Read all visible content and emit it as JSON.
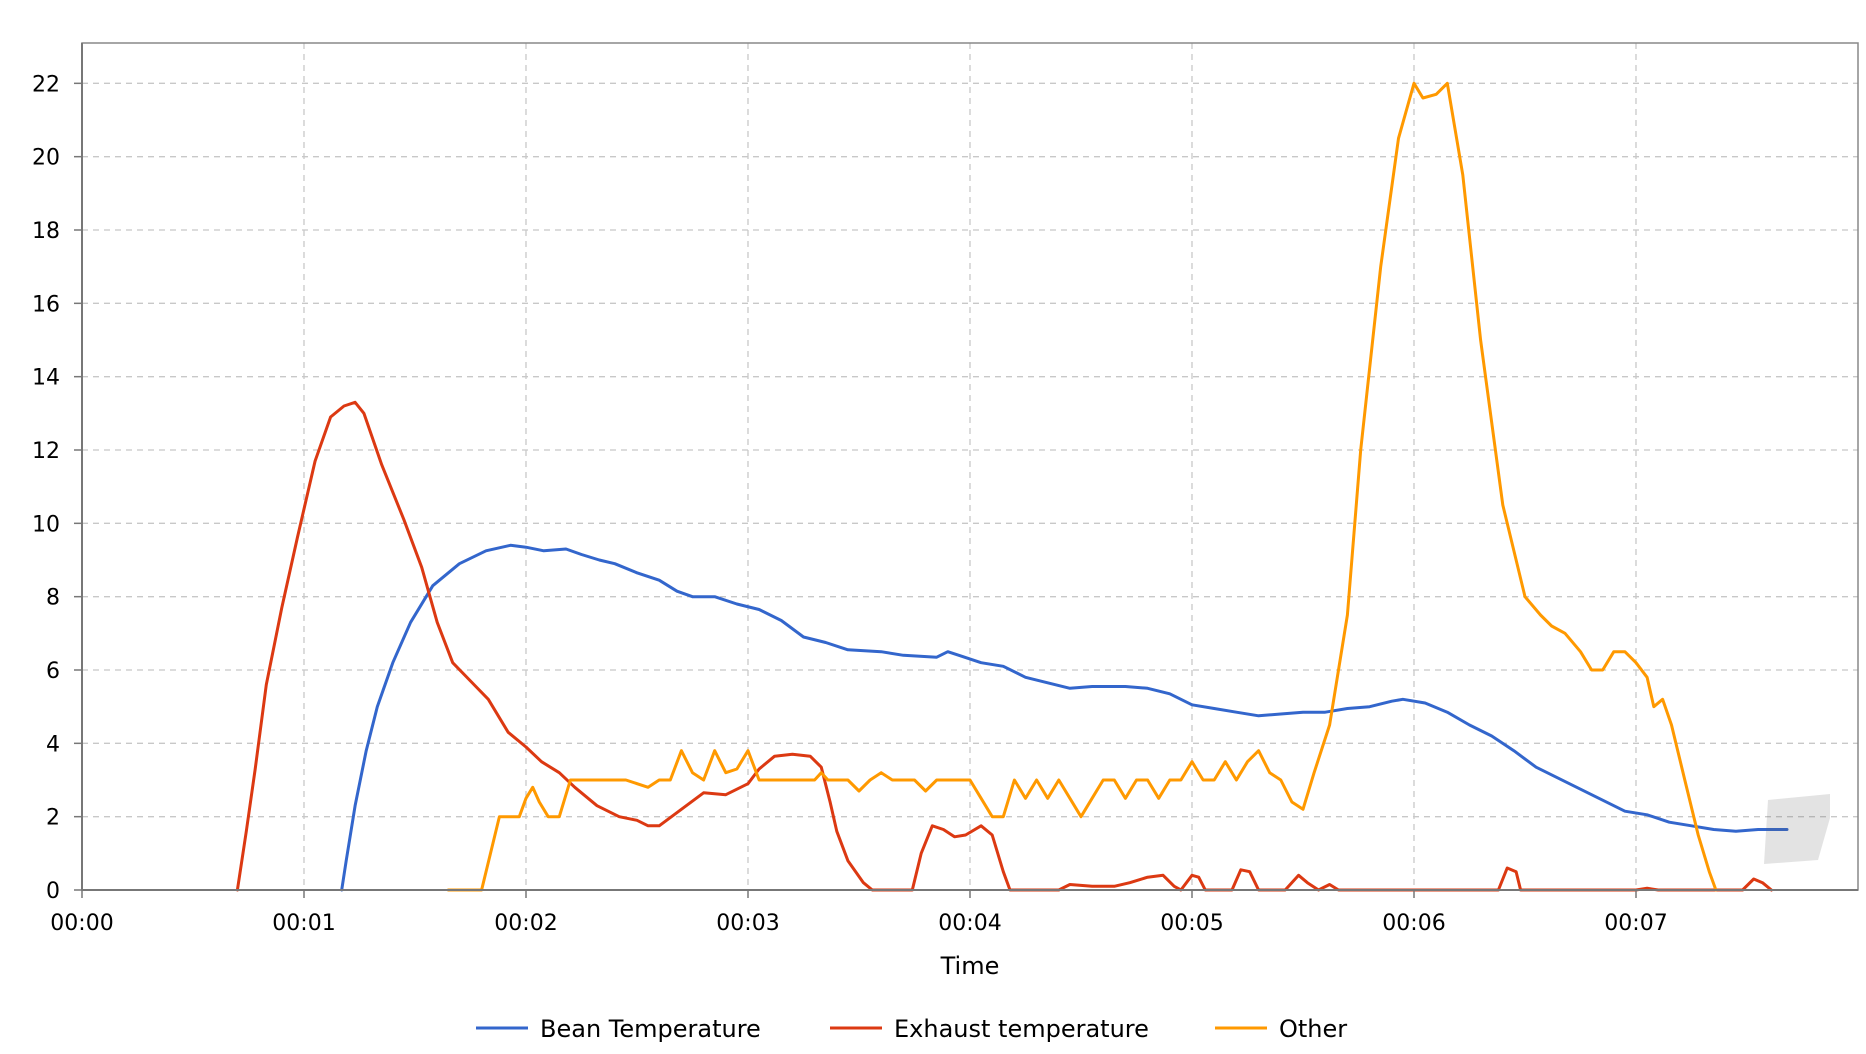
{
  "chart_data": {
    "type": "line",
    "title": "",
    "xlabel": "Time",
    "ylabel": "",
    "xlim": [
      0,
      8.0
    ],
    "ylim": [
      0,
      23.1
    ],
    "grid": true,
    "legend_position": "bottom-center",
    "x_ticks": [
      {
        "value": 0,
        "label": "00:00"
      },
      {
        "value": 1,
        "label": "00:01"
      },
      {
        "value": 2,
        "label": "00:02"
      },
      {
        "value": 3,
        "label": "00:03"
      },
      {
        "value": 4,
        "label": "00:04"
      },
      {
        "value": 5,
        "label": "00:05"
      },
      {
        "value": 6,
        "label": "00:06"
      },
      {
        "value": 7,
        "label": "00:07"
      }
    ],
    "y_ticks": [
      {
        "value": 0,
        "label": "0"
      },
      {
        "value": 2,
        "label": "2"
      },
      {
        "value": 4,
        "label": "4"
      },
      {
        "value": 6,
        "label": "6"
      },
      {
        "value": 8,
        "label": "8"
      },
      {
        "value": 10,
        "label": "10"
      },
      {
        "value": 12,
        "label": "12"
      },
      {
        "value": 14,
        "label": "14"
      },
      {
        "value": 16,
        "label": "16"
      },
      {
        "value": 18,
        "label": "18"
      },
      {
        "value": 20,
        "label": "20"
      },
      {
        "value": 22,
        "label": "22"
      }
    ],
    "series": [
      {
        "name": "Bean Temperature",
        "color": "#3366cc",
        "points": [
          [
            1.17,
            0
          ],
          [
            1.19,
            0.8
          ],
          [
            1.23,
            2.3
          ],
          [
            1.28,
            3.8
          ],
          [
            1.33,
            5.0
          ],
          [
            1.4,
            6.2
          ],
          [
            1.48,
            7.3
          ],
          [
            1.58,
            8.3
          ],
          [
            1.7,
            8.9
          ],
          [
            1.82,
            9.25
          ],
          [
            1.93,
            9.4
          ],
          [
            2.0,
            9.35
          ],
          [
            2.08,
            9.25
          ],
          [
            2.18,
            9.3
          ],
          [
            2.25,
            9.15
          ],
          [
            2.33,
            9.0
          ],
          [
            2.4,
            8.9
          ],
          [
            2.5,
            8.65
          ],
          [
            2.6,
            8.45
          ],
          [
            2.68,
            8.15
          ],
          [
            2.75,
            8.0
          ],
          [
            2.85,
            8.0
          ],
          [
            2.95,
            7.8
          ],
          [
            3.05,
            7.65
          ],
          [
            3.15,
            7.35
          ],
          [
            3.25,
            6.9
          ],
          [
            3.35,
            6.75
          ],
          [
            3.45,
            6.55
          ],
          [
            3.6,
            6.5
          ],
          [
            3.7,
            6.4
          ],
          [
            3.85,
            6.35
          ],
          [
            3.9,
            6.5
          ],
          [
            3.95,
            6.4
          ],
          [
            4.05,
            6.2
          ],
          [
            4.15,
            6.1
          ],
          [
            4.25,
            5.8
          ],
          [
            4.35,
            5.65
          ],
          [
            4.45,
            5.5
          ],
          [
            4.55,
            5.55
          ],
          [
            4.7,
            5.55
          ],
          [
            4.8,
            5.5
          ],
          [
            4.9,
            5.35
          ],
          [
            5.0,
            5.05
          ],
          [
            5.1,
            4.95
          ],
          [
            5.2,
            4.85
          ],
          [
            5.3,
            4.75
          ],
          [
            5.4,
            4.8
          ],
          [
            5.5,
            4.85
          ],
          [
            5.6,
            4.85
          ],
          [
            5.7,
            4.95
          ],
          [
            5.8,
            5.0
          ],
          [
            5.9,
            5.15
          ],
          [
            5.95,
            5.2
          ],
          [
            6.05,
            5.1
          ],
          [
            6.15,
            4.85
          ],
          [
            6.25,
            4.5
          ],
          [
            6.35,
            4.2
          ],
          [
            6.45,
            3.8
          ],
          [
            6.55,
            3.35
          ],
          [
            6.65,
            3.05
          ],
          [
            6.75,
            2.75
          ],
          [
            6.85,
            2.45
          ],
          [
            6.95,
            2.15
          ],
          [
            7.05,
            2.05
          ],
          [
            7.15,
            1.85
          ],
          [
            7.25,
            1.75
          ],
          [
            7.35,
            1.65
          ],
          [
            7.45,
            1.6
          ],
          [
            7.55,
            1.65
          ],
          [
            7.63,
            1.65
          ],
          [
            7.68,
            1.65
          ]
        ]
      },
      {
        "name": "Exhaust temperature",
        "color": "#dc3912",
        "points": [
          [
            0.7,
            0
          ],
          [
            0.74,
            1.6
          ],
          [
            0.78,
            3.3
          ],
          [
            0.83,
            5.6
          ],
          [
            0.9,
            7.7
          ],
          [
            0.97,
            9.6
          ],
          [
            1.05,
            11.7
          ],
          [
            1.12,
            12.9
          ],
          [
            1.18,
            13.2
          ],
          [
            1.23,
            13.3
          ],
          [
            1.27,
            13.0
          ],
          [
            1.35,
            11.6
          ],
          [
            1.45,
            10.1
          ],
          [
            1.53,
            8.8
          ],
          [
            1.6,
            7.3
          ],
          [
            1.67,
            6.2
          ],
          [
            1.75,
            5.7
          ],
          [
            1.83,
            5.2
          ],
          [
            1.92,
            4.3
          ],
          [
            2.0,
            3.9
          ],
          [
            2.07,
            3.5
          ],
          [
            2.15,
            3.2
          ],
          [
            2.22,
            2.8
          ],
          [
            2.32,
            2.3
          ],
          [
            2.42,
            2.0
          ],
          [
            2.5,
            1.9
          ],
          [
            2.55,
            1.75
          ],
          [
            2.6,
            1.75
          ],
          [
            2.7,
            2.2
          ],
          [
            2.8,
            2.65
          ],
          [
            2.9,
            2.6
          ],
          [
            3.0,
            2.9
          ],
          [
            3.05,
            3.3
          ],
          [
            3.12,
            3.65
          ],
          [
            3.2,
            3.7
          ],
          [
            3.28,
            3.65
          ],
          [
            3.33,
            3.35
          ],
          [
            3.37,
            2.4
          ],
          [
            3.4,
            1.6
          ],
          [
            3.45,
            0.8
          ],
          [
            3.52,
            0.2
          ],
          [
            3.56,
            0
          ],
          [
            3.74,
            0
          ],
          [
            3.78,
            1.0
          ],
          [
            3.83,
            1.75
          ],
          [
            3.88,
            1.65
          ],
          [
            3.93,
            1.45
          ],
          [
            3.98,
            1.5
          ],
          [
            4.05,
            1.75
          ],
          [
            4.1,
            1.5
          ],
          [
            4.15,
            0.5
          ],
          [
            4.18,
            0
          ],
          [
            4.4,
            0
          ],
          [
            4.45,
            0.15
          ],
          [
            4.55,
            0.1
          ],
          [
            4.65,
            0.1
          ],
          [
            4.72,
            0.2
          ],
          [
            4.8,
            0.35
          ],
          [
            4.87,
            0.4
          ],
          [
            4.92,
            0.1
          ],
          [
            4.95,
            0
          ],
          [
            5.0,
            0.4
          ],
          [
            5.03,
            0.35
          ],
          [
            5.06,
            0
          ],
          [
            5.18,
            0
          ],
          [
            5.22,
            0.55
          ],
          [
            5.26,
            0.5
          ],
          [
            5.3,
            0
          ],
          [
            5.42,
            0
          ],
          [
            5.48,
            0.4
          ],
          [
            5.52,
            0.2
          ],
          [
            5.57,
            0
          ],
          [
            5.62,
            0.15
          ],
          [
            5.66,
            0
          ],
          [
            6.38,
            0
          ],
          [
            6.42,
            0.6
          ],
          [
            6.46,
            0.5
          ],
          [
            6.48,
            0
          ],
          [
            7.0,
            0
          ],
          [
            7.05,
            0.05
          ],
          [
            7.1,
            0
          ],
          [
            7.48,
            0
          ],
          [
            7.53,
            0.3
          ],
          [
            7.57,
            0.2
          ],
          [
            7.61,
            0
          ]
        ]
      },
      {
        "name": "Other",
        "color": "#ff9900",
        "points": [
          [
            1.65,
            0
          ],
          [
            1.8,
            0
          ],
          [
            1.88,
            2.0
          ],
          [
            1.97,
            2.0
          ],
          [
            2.0,
            2.5
          ],
          [
            2.03,
            2.8
          ],
          [
            2.06,
            2.4
          ],
          [
            2.1,
            2.0
          ],
          [
            2.15,
            2.0
          ],
          [
            2.2,
            3.0
          ],
          [
            2.45,
            3.0
          ],
          [
            2.55,
            2.8
          ],
          [
            2.6,
            3.0
          ],
          [
            2.65,
            3.0
          ],
          [
            2.7,
            3.8
          ],
          [
            2.75,
            3.2
          ],
          [
            2.8,
            3.0
          ],
          [
            2.85,
            3.8
          ],
          [
            2.9,
            3.2
          ],
          [
            2.95,
            3.3
          ],
          [
            3.0,
            3.8
          ],
          [
            3.05,
            3.0
          ],
          [
            3.3,
            3.0
          ],
          [
            3.33,
            3.2
          ],
          [
            3.36,
            3.0
          ],
          [
            3.45,
            3.0
          ],
          [
            3.5,
            2.7
          ],
          [
            3.55,
            3.0
          ],
          [
            3.6,
            3.2
          ],
          [
            3.65,
            3.0
          ],
          [
            3.75,
            3.0
          ],
          [
            3.8,
            2.7
          ],
          [
            3.85,
            3.0
          ],
          [
            4.0,
            3.0
          ],
          [
            4.05,
            2.5
          ],
          [
            4.1,
            2.0
          ],
          [
            4.15,
            2.0
          ],
          [
            4.2,
            3.0
          ],
          [
            4.25,
            2.5
          ],
          [
            4.3,
            3.0
          ],
          [
            4.35,
            2.5
          ],
          [
            4.4,
            3.0
          ],
          [
            4.45,
            2.5
          ],
          [
            4.5,
            2.0
          ],
          [
            4.55,
            2.5
          ],
          [
            4.6,
            3.0
          ],
          [
            4.65,
            3.0
          ],
          [
            4.7,
            2.5
          ],
          [
            4.75,
            3.0
          ],
          [
            4.8,
            3.0
          ],
          [
            4.85,
            2.5
          ],
          [
            4.9,
            3.0
          ],
          [
            4.95,
            3.0
          ],
          [
            5.0,
            3.5
          ],
          [
            5.05,
            3.0
          ],
          [
            5.1,
            3.0
          ],
          [
            5.15,
            3.5
          ],
          [
            5.2,
            3.0
          ],
          [
            5.25,
            3.5
          ],
          [
            5.3,
            3.8
          ],
          [
            5.35,
            3.2
          ],
          [
            5.4,
            3.0
          ],
          [
            5.45,
            2.4
          ],
          [
            5.5,
            2.2
          ],
          [
            5.55,
            3.2
          ],
          [
            5.62,
            4.5
          ],
          [
            5.7,
            7.5
          ],
          [
            5.76,
            12.0
          ],
          [
            5.85,
            17.0
          ],
          [
            5.93,
            20.5
          ],
          [
            6.0,
            22.0
          ],
          [
            6.04,
            21.6
          ],
          [
            6.1,
            21.7
          ],
          [
            6.15,
            22.0
          ],
          [
            6.22,
            19.5
          ],
          [
            6.3,
            15.0
          ],
          [
            6.4,
            10.5
          ],
          [
            6.5,
            8.0
          ],
          [
            6.57,
            7.5
          ],
          [
            6.62,
            7.2
          ],
          [
            6.68,
            7.0
          ],
          [
            6.75,
            6.5
          ],
          [
            6.8,
            6.0
          ],
          [
            6.85,
            6.0
          ],
          [
            6.9,
            6.5
          ],
          [
            6.95,
            6.5
          ],
          [
            7.0,
            6.2
          ],
          [
            7.05,
            5.8
          ],
          [
            7.08,
            5.0
          ],
          [
            7.12,
            5.2
          ],
          [
            7.16,
            4.5
          ],
          [
            7.22,
            3.0
          ],
          [
            7.28,
            1.5
          ],
          [
            7.33,
            0.5
          ],
          [
            7.36,
            0
          ]
        ]
      }
    ]
  }
}
